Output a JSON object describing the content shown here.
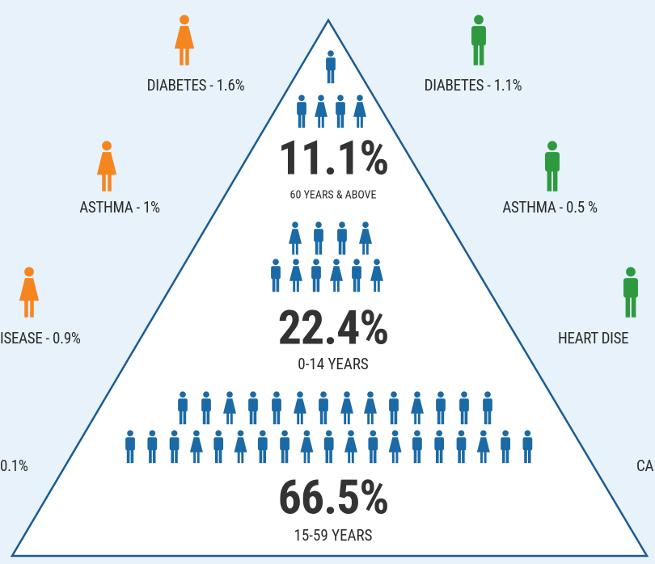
{
  "left_labels": [
    "DIABETES - 1.6%",
    "ASTHMA - 1%",
    "ISEASE - 0.9%",
    "0.1%"
  ],
  "right_labels": [
    "DIABETES - 1.1%",
    "ASTHMA - 0.5 %",
    "HEART DISE",
    "CA"
  ],
  "tiers": [
    {
      "value": "11.1%",
      "label": "60 YEARS & ABOVE"
    },
    {
      "value": "22.4%",
      "label": "0-14 YEARS"
    },
    {
      "value": "66.5%",
      "label": "15-59 YEARS"
    }
  ]
}
